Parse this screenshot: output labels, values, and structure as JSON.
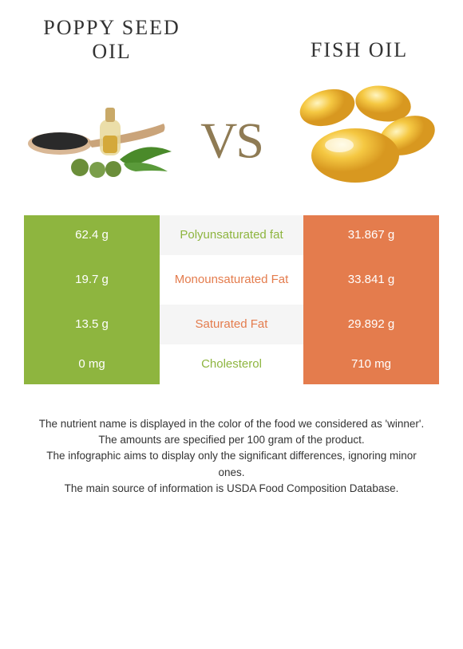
{
  "header": {
    "left_title": "Poppy seed oil",
    "right_title": "Fish oil",
    "vs_text": "VS"
  },
  "colors": {
    "left_bar": "#8eb53f",
    "right_bar": "#e47c4d",
    "mid_bg_alt1": "#f5f5f5",
    "mid_bg_alt2": "#ffffff",
    "mid_text_left_winner": "#8eb53f",
    "mid_text_right_winner": "#e47c4d",
    "vs_color": "#8f7b54"
  },
  "rows": [
    {
      "left": "62.4 g",
      "label": "Polyunsaturated fat",
      "right": "31.867 g",
      "winner": "left",
      "tall": false
    },
    {
      "left": "19.7 g",
      "label": "Monounsaturated Fat",
      "right": "33.841 g",
      "winner": "right",
      "tall": true
    },
    {
      "left": "13.5 g",
      "label": "Saturated Fat",
      "right": "29.892 g",
      "winner": "right",
      "tall": false
    },
    {
      "left": "0 mg",
      "label": "Cholesterol",
      "right": "710 mg",
      "winner": "left",
      "tall": false
    }
  ],
  "footer": {
    "l1": "The nutrient name is displayed in the color of the food we considered as 'winner'.",
    "l2": "The amounts are specified per 100 gram of the product.",
    "l3": "The infographic aims to display only the significant differences, ignoring minor ones.",
    "l4": "The main source of information is USDA Food Composition Database."
  }
}
